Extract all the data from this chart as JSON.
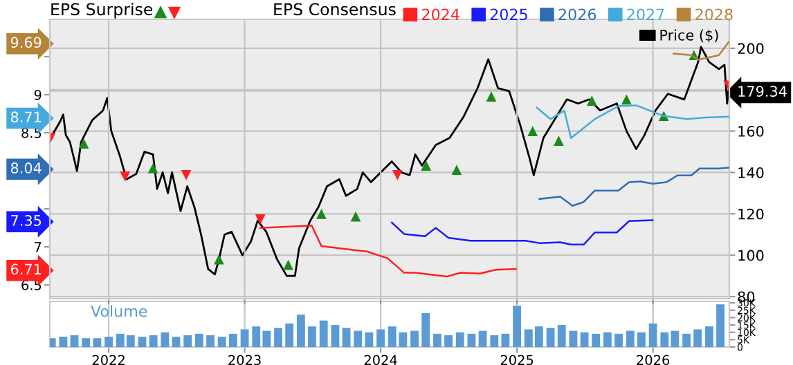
{
  "chart_data": [
    {
      "type": "line",
      "title": "EPS Surprise",
      "legend_title": "EPS Consensus",
      "legend": "top",
      "grid": true,
      "tick_labels": "y",
      "xlim": [
        "2021-07-27",
        "2026-07-25"
      ],
      "xticks": [
        {
          "value": "2022",
          "label": null
        },
        {
          "value": "2023",
          "label": null
        },
        {
          "value": "2024",
          "label": null
        },
        {
          "value": "2025",
          "label": null
        },
        {
          "value": "2026",
          "label": null
        }
      ],
      "ylim": [
        6.32,
        9.99
      ],
      "yticks": [
        6.5,
        7,
        {
          "value": 7.5,
          "label": null
        },
        {
          "value": 8,
          "label": null
        },
        8.5,
        9,
        {
          "value": 9.5,
          "label": null
        },
        6.71,
        7.35,
        8.04,
        8.71,
        9.69
      ],
      "y2lim": [
        79,
        214
      ],
      "y2ticks": [
        80,
        100,
        120,
        140,
        160,
        {
          "value": 180,
          "label": null
        },
        200,
        179.34
      ],
      "series": [
        {
          "name": "2024",
          "color": "#ff2020",
          "type": "line",
          "axis": "y",
          "x": [
            "2023-02-12",
            "2023-06-30",
            "2023-07-26",
            "2023-11-25",
            "2024-01-20",
            "2024-03-04",
            "2024-04-03",
            "2024-06-27",
            "2024-08-03",
            "2024-09-24",
            "2024-11-04",
            "2024-12-29"
          ],
          "values": [
            7.25,
            7.28,
            7.01,
            6.94,
            6.85,
            6.66,
            6.66,
            6.61,
            6.66,
            6.65,
            6.7,
            6.71
          ]
        },
        {
          "name": "2025",
          "color": "#1a1aff",
          "type": "line",
          "axis": "y",
          "x": [
            "2024-01-31",
            "2024-03-04",
            "2024-04-29",
            "2024-05-28",
            "2024-07-01",
            "2024-08-29",
            "2025-01-24",
            "2025-03-02",
            "2025-04-27",
            "2025-05-26",
            "2025-06-29",
            "2025-07-29",
            "2025-09-26",
            "2025-10-29",
            "2025-12-31"
          ],
          "values": [
            7.32,
            7.17,
            7.14,
            7.25,
            7.12,
            7.08,
            7.08,
            7.05,
            7.06,
            7.03,
            7.03,
            7.19,
            7.19,
            7.34,
            7.35
          ]
        },
        {
          "name": "2026",
          "color": "#2f6db5",
          "type": "line",
          "axis": "y",
          "x": [
            "2025-03-02",
            "2025-04-27",
            "2025-05-30",
            "2025-06-29",
            "2025-07-29",
            "2025-09-30",
            "2025-10-29",
            "2025-11-28",
            "2025-12-31",
            "2026-02-06",
            "2026-03-08",
            "2026-04-14",
            "2026-05-06",
            "2026-06-27",
            "2026-07-23"
          ],
          "values": [
            7.63,
            7.66,
            7.54,
            7.59,
            7.74,
            7.74,
            7.85,
            7.86,
            7.83,
            7.85,
            7.94,
            7.94,
            8.03,
            8.03,
            8.04
          ]
        },
        {
          "name": "2027",
          "color": "#44aadd",
          "type": "line",
          "axis": "y",
          "x": [
            "2025-02-23",
            "2025-04-01",
            "2025-05-08",
            "2025-05-26",
            "2025-07-29",
            "2025-09-30",
            "2025-11-17",
            "2025-12-24",
            "2026-01-30",
            "2026-04-03",
            "2026-05-21",
            "2026-07-23"
          ],
          "values": [
            8.83,
            8.68,
            8.79,
            8.43,
            8.68,
            8.85,
            8.86,
            8.79,
            8.72,
            8.68,
            8.7,
            8.71
          ]
        },
        {
          "name": "2028",
          "color": "#b5843a",
          "type": "line",
          "axis": "y",
          "x": [
            "2026-02-25",
            "2026-04-14",
            "2026-05-02",
            "2026-06-09",
            "2026-06-27",
            "2026-07-23"
          ],
          "values": [
            9.54,
            9.52,
            9.46,
            9.5,
            9.52,
            9.69
          ]
        },
        {
          "name": "Price ($)",
          "color": "#000000",
          "type": "line",
          "axis": "y2",
          "x": [
            "2021-07-29",
            "2021-08-24",
            "2021-09-01",
            "2021-09-08",
            "2021-09-19",
            "2021-10-08",
            "2021-10-19",
            "2021-11-18",
            "2021-12-17",
            "2021-12-28",
            "2022-01-08",
            "2022-01-31",
            "2022-02-18",
            "2022-03-16",
            "2022-04-07",
            "2022-04-30",
            "2022-05-11",
            "2022-05-26",
            "2022-06-09",
            "2022-06-20",
            "2022-07-13",
            "2022-07-31",
            "2022-08-19",
            "2022-09-06",
            "2022-09-25",
            "2022-10-13",
            "2022-10-24",
            "2022-11-08",
            "2022-11-27",
            "2022-12-26",
            "2023-01-18",
            "2023-02-05",
            "2023-02-28",
            "2023-03-29",
            "2023-04-24",
            "2023-05-16",
            "2023-05-27",
            "2023-06-26",
            "2023-07-18",
            "2023-08-10",
            "2023-09-12",
            "2023-09-30",
            "2023-10-30",
            "2023-11-14",
            "2023-12-06",
            "2024-01-01",
            "2024-01-31",
            "2024-02-26",
            "2024-03-19",
            "2024-04-03",
            "2024-04-21",
            "2024-05-28",
            "2024-07-04",
            "2024-08-10",
            "2024-09-17",
            "2024-10-16",
            "2024-11-11",
            "2024-12-11",
            "2025-01-09",
            "2025-02-04",
            "2025-02-15",
            "2025-03-13",
            "2025-04-16",
            "2025-05-15",
            "2025-06-14",
            "2025-07-14",
            "2025-08-12",
            "2025-09-26",
            "2025-10-22",
            "2025-11-17",
            "2025-12-09",
            "2026-01-08",
            "2026-02-10",
            "2026-03-26",
            "2026-05-02",
            "2026-05-10",
            "2026-06-01",
            "2026-06-27",
            "2026-07-12",
            "2026-07-19",
            "2026-07-23"
          ],
          "values": [
            156.7,
            164.7,
            168,
            158,
            154.7,
            140.7,
            154.7,
            165.3,
            170,
            176,
            160,
            148,
            136.7,
            139.3,
            150,
            148.7,
            132,
            140,
            130,
            140,
            121.3,
            133.3,
            123.3,
            110,
            93.3,
            90.7,
            98,
            110,
            111.3,
            100,
            106.7,
            116.7,
            111.3,
            98,
            90,
            90,
            103.3,
            116.7,
            123.3,
            133.3,
            136.7,
            128.7,
            132,
            140,
            135.3,
            140,
            145.3,
            140,
            138.7,
            148.7,
            143.3,
            153.3,
            156.7,
            166.7,
            180.7,
            194.7,
            180.7,
            179.3,
            163.3,
            146.7,
            138.7,
            156.7,
            166.7,
            175.3,
            173.3,
            175.3,
            170,
            173.3,
            160,
            151.3,
            158,
            170,
            178,
            175.3,
            193.3,
            200.7,
            193.3,
            190,
            192,
            173.3,
            179.34
          ]
        },
        {
          "color": "#1a8a1a",
          "type": "scatter",
          "marker": "triangle",
          "axis": "y2",
          "x": [
            "2021-10-26",
            "2022-04-30",
            "2022-10-24",
            "2023-04-28",
            "2023-07-26",
            "2023-10-26",
            "2024-05-02",
            "2024-07-23",
            "2024-10-24",
            "2025-02-12",
            "2025-04-23",
            "2025-07-21",
            "2025-10-22",
            "2026-01-30",
            "2026-04-21"
          ],
          "values": [
            154,
            142,
            98,
            95.3,
            120,
            118.7,
            143.3,
            141.3,
            176.7,
            160,
            155.3,
            174.7,
            175.3,
            167.3,
            196.7
          ]
        },
        {
          "color": "#ff2020",
          "type": "scatter",
          "marker": "triangle_down",
          "axis": "y2",
          "x": [
            "2021-07-29",
            "2022-02-14",
            "2022-07-28",
            "2023-02-12",
            "2024-02-15",
            "2026-07-23"
          ],
          "values": [
            156.7,
            138,
            138.7,
            117.3,
            138.7,
            182
          ]
        }
      ]
    },
    {
      "type": "bar",
      "title": "Volume",
      "grid": "x",
      "color": "#5b9bd5",
      "xlim": [
        "2021-07-27",
        "2026-07-25"
      ],
      "xticks": [
        "2022",
        "2023",
        "2024",
        "2025",
        "2026"
      ],
      "ylim": [
        0,
        31
      ],
      "yticks": [
        0,
        {
          "value": 5,
          "label": "5K"
        },
        {
          "value": 10,
          "label": "10K"
        },
        {
          "value": 15,
          "label": "15K"
        },
        {
          "value": 20,
          "label": "20K"
        },
        {
          "value": 25,
          "label": "25K"
        },
        {
          "value": 30,
          "label": "30K"
        }
      ],
      "x": [
        "2021-08",
        "2021-09",
        "2021-10",
        "2021-11",
        "2021-12",
        "2022-01",
        "2022-02",
        "2022-03",
        "2022-04",
        "2022-05",
        "2022-06",
        "2022-07",
        "2022-08",
        "2022-09",
        "2022-10",
        "2022-11",
        "2022-12",
        "2023-01",
        "2023-02",
        "2023-03",
        "2023-04",
        "2023-05",
        "2023-06",
        "2023-07",
        "2023-08",
        "2023-09",
        "2023-10",
        "2023-11",
        "2023-12",
        "2024-01",
        "2024-02",
        "2024-03",
        "2024-04",
        "2024-05",
        "2024-06",
        "2024-07",
        "2024-08",
        "2024-09",
        "2024-10",
        "2024-11",
        "2024-12",
        "2025-01",
        "2025-02",
        "2025-03",
        "2025-04",
        "2025-05",
        "2025-06",
        "2025-07",
        "2025-08",
        "2025-09",
        "2025-10",
        "2025-11",
        "2025-12",
        "2026-01",
        "2026-02",
        "2026-03",
        "2026-04",
        "2026-05",
        "2026-06",
        "2026-07"
      ],
      "values": [
        6,
        7,
        8,
        6,
        6,
        7,
        9,
        8,
        7,
        8,
        10,
        7,
        8,
        9,
        8,
        7,
        9,
        12,
        14,
        11,
        13,
        16,
        22,
        14,
        18,
        15,
        13,
        11,
        10,
        12,
        14,
        10,
        11,
        23,
        9,
        8,
        10,
        9,
        11,
        8,
        9,
        28,
        12,
        14,
        13,
        15,
        11,
        10,
        9,
        10,
        9,
        11,
        10,
        16,
        10,
        11,
        9,
        12,
        14,
        29
      ]
    }
  ]
}
